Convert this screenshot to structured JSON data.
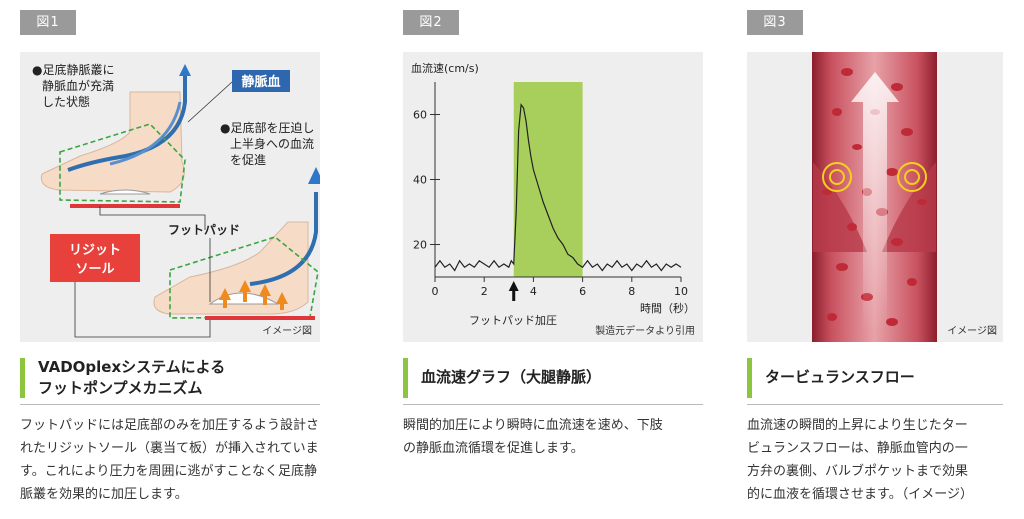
{
  "fig1": {
    "tag": "図1",
    "note1": [
      "●足底静脈叢に",
      "静脈血が充満",
      "した状態"
    ],
    "vein_label": "静脈血",
    "note2": [
      "●足底部を圧迫し",
      "上半身への血流",
      "を促進"
    ],
    "footpad": "フットパッド",
    "rigid": [
      "リジット",
      "ソール"
    ],
    "image_note": "イメージ図",
    "heading": [
      "VADOplexシステムによる",
      "フットポンプメカニズム"
    ],
    "body": [
      "フットパッドには足底部のみを加圧するよう設計さ",
      "れたリジットソール（裏当て板）が挿入されていま",
      "す。これにより圧力を周囲に逃がすことなく足底静",
      "脈叢を効果的に加圧します。"
    ]
  },
  "fig2": {
    "tag": "図2",
    "pad_label": "フットパッド加圧",
    "source": "製造元データより引用",
    "heading": "血流速グラフ（大腿静脈）",
    "body": [
      "瞬間的加圧により瞬時に血流速を速め、下肢",
      "の静脈血流循環を促進します。"
    ]
  },
  "fig3": {
    "tag": "図3",
    "image_note": "イメージ図",
    "heading": "タービュランスフロー",
    "body": [
      "血流速の瞬間的上昇により生じたター",
      "ビュランスフローは、静脈血管内の一",
      "方弁の裏側、バルブポケットまで効果",
      "的に血液を循環させます。（イメージ）"
    ]
  },
  "chart_data": {
    "type": "line",
    "ylabel": "血流速(cm/s)",
    "xlabel": "時間（秒）",
    "xlim": [
      0,
      10
    ],
    "ylim": [
      10,
      70
    ],
    "xticks": [
      0,
      2,
      4,
      6,
      8,
      10
    ],
    "yticks": [
      20,
      40,
      60
    ],
    "highlight_x": [
      3.2,
      6
    ],
    "highlight_color": "#a8cf5c",
    "line_color": "#222222",
    "x": [
      0,
      0.2,
      0.4,
      0.6,
      0.8,
      1,
      1.2,
      1.4,
      1.6,
      1.8,
      2,
      2.2,
      2.4,
      2.6,
      2.8,
      3,
      3.1,
      3.2,
      3.3,
      3.4,
      3.5,
      3.6,
      3.7,
      3.8,
      3.9,
      4,
      4.2,
      4.4,
      4.6,
      4.8,
      5,
      5.2,
      5.4,
      5.6,
      5.8,
      6,
      6.2,
      6.4,
      6.6,
      6.8,
      7,
      7.2,
      7.4,
      7.6,
      7.8,
      8,
      8.2,
      8.4,
      8.6,
      8.8,
      9,
      9.2,
      9.4,
      9.6,
      9.8,
      10
    ],
    "y": [
      13,
      15,
      13,
      14,
      12,
      15,
      13,
      14,
      13,
      15,
      14,
      13,
      15,
      13,
      14,
      13,
      15,
      14,
      30,
      55,
      63,
      62,
      58,
      52,
      47,
      43,
      38,
      33,
      29,
      25,
      22,
      20,
      17,
      16,
      14,
      13,
      15,
      13,
      14,
      12,
      14,
      13,
      15,
      13,
      14,
      12,
      14,
      13,
      15,
      13,
      14,
      12,
      14,
      13,
      14,
      13
    ]
  }
}
